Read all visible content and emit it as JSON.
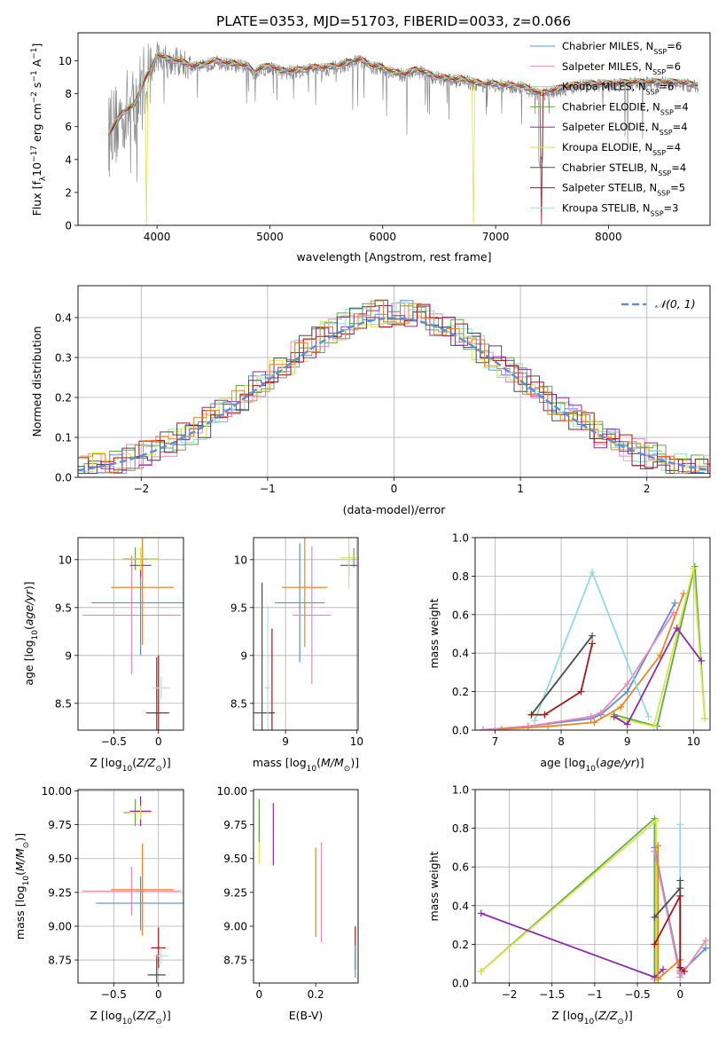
{
  "title": "PLATE=0353, MJD=51703, FIBERID=0033, z=0.066",
  "colors": {
    "Chabrier MILES": "#5b8fd9",
    "Salpeter MILES": "#e889b8",
    "Kroupa MILES": "#8fdbe0",
    "Chabrier ELODIE": "#62a845",
    "Salpeter ELODIE": "#8e2ca8",
    "Kroupa ELODIE": "#d8e64a",
    "Chabrier STELIB": "#4b4b4b",
    "Salpeter STELIB": "#a31616",
    "Kroupa STELIB": "#a7e2ee",
    "data": "#808080",
    "orange": "#f08221",
    "normal": "#5b8fd9"
  },
  "chart_data": [
    {
      "id": "spectrum",
      "type": "line",
      "xlabel": "wavelength [Angstrom, rest frame]",
      "ylabel": "Flux [fλ10⁻¹⁷ erg cm⁻² s⁻¹ A⁻¹]",
      "xlim": [
        3300,
        8900
      ],
      "ylim": [
        0,
        11.7
      ],
      "xticks": [
        4000,
        5000,
        6000,
        7000,
        8000
      ],
      "yticks": [
        0,
        2,
        4,
        6,
        8,
        10
      ],
      "grid": false,
      "legend_placement": "upper right",
      "legend": [
        "Chabrier MILES, N_SSP=6",
        "Salpeter MILES, N_SSP=6",
        "Kroupa MILES, N_SSP=6",
        "Chabrier ELODIE, N_SSP=4",
        "Salpeter ELODIE, N_SSP=4",
        "Kroupa ELODIE, N_SSP=4",
        "Chabrier STELIB, N_SSP=4",
        "Salpeter STELIB, N_SSP=5",
        "Kroupa STELIB, N_SSP=3"
      ],
      "continuum_points": [
        [
          3570,
          5.4
        ],
        [
          3700,
          6.8
        ],
        [
          3800,
          7.2
        ],
        [
          3900,
          8.9
        ],
        [
          3950,
          9.3
        ],
        [
          4000,
          10.3
        ],
        [
          4100,
          10.0
        ],
        [
          4200,
          9.9
        ],
        [
          4300,
          9.6
        ],
        [
          4400,
          9.6
        ],
        [
          4500,
          9.9
        ],
        [
          4600,
          9.8
        ],
        [
          4700,
          9.7
        ],
        [
          4800,
          9.6
        ],
        [
          4860,
          9.2
        ],
        [
          4900,
          9.4
        ],
        [
          5000,
          9.6
        ],
        [
          5100,
          9.3
        ],
        [
          5200,
          9.3
        ],
        [
          5300,
          9.4
        ],
        [
          5400,
          9.5
        ],
        [
          5500,
          9.5
        ],
        [
          5600,
          9.6
        ],
        [
          5700,
          9.8
        ],
        [
          5800,
          10.0
        ],
        [
          5900,
          9.6
        ],
        [
          6000,
          9.5
        ],
        [
          6100,
          9.2
        ],
        [
          6200,
          9.1
        ],
        [
          6300,
          9.4
        ],
        [
          6400,
          9.1
        ],
        [
          6500,
          8.9
        ],
        [
          6600,
          8.8
        ],
        [
          6700,
          8.8
        ],
        [
          6800,
          8.6
        ],
        [
          6900,
          8.5
        ],
        [
          7000,
          8.5
        ],
        [
          7100,
          8.4
        ],
        [
          7200,
          8.4
        ],
        [
          7300,
          8.2
        ],
        [
          7400,
          7.9
        ],
        [
          7600,
          8.3
        ],
        [
          7800,
          8.5
        ],
        [
          8000,
          8.5
        ],
        [
          8200,
          8.6
        ],
        [
          8400,
          8.6
        ],
        [
          8600,
          8.6
        ],
        [
          8800,
          8.4
        ]
      ]
    },
    {
      "id": "residuals",
      "type": "step histogram",
      "xlabel": "(data-model)/error",
      "ylabel": "Normed distribution",
      "xlim": [
        -2.5,
        2.5
      ],
      "ylim": [
        0,
        0.48
      ],
      "xticks": [
        -2,
        -1,
        0,
        1,
        2
      ],
      "yticks": [
        0.0,
        0.1,
        0.2,
        0.3,
        0.4
      ],
      "grid": true,
      "legend_placement": "upper right",
      "legend": [
        "𝒩(0, 1)"
      ],
      "normal_curve": {
        "mu": 0,
        "sigma": 1
      }
    },
    {
      "id": "age-Z",
      "type": "errorbar",
      "xlabel": "Z [log₁₀(Z/Z⊙)]",
      "ylabel": "age  [log₁₀(age/yr)]",
      "xlim": [
        -0.9,
        0.28
      ],
      "ylim": [
        8.22,
        10.23
      ],
      "xticks": [
        -0.5,
        0.0
      ],
      "yticks": [
        8.5,
        9.0,
        9.5,
        10.0
      ],
      "grid": true,
      "points": [
        {
          "model": "Salpeter MILES",
          "x": -0.3,
          "y": 9.42,
          "xerr": 0.55,
          "yerr": 0.62
        },
        {
          "model": "Chabrier MILES",
          "x": -0.2,
          "y": 9.55,
          "xerr": 0.55,
          "yerr": 0.55
        },
        {
          "model": "orange",
          "x": -0.18,
          "y": 9.71,
          "xerr": 0.35,
          "yerr": 0.6
        },
        {
          "model": "Chabrier ELODIE",
          "x": -0.26,
          "y": 10.01,
          "xerr": 0.13,
          "yerr": 0.12
        },
        {
          "model": "Salpeter ELODIE",
          "x": -0.2,
          "y": 9.94,
          "xerr": 0.12,
          "yerr": 0.12
        },
        {
          "model": "Kroupa ELODIE",
          "x": -0.2,
          "y": 10.01,
          "xerr": 0.2,
          "yerr": 0.12
        },
        {
          "model": "Chabrier STELIB",
          "x": -0.02,
          "y": 8.4,
          "xerr": 0.12,
          "yerr": 0.58
        },
        {
          "model": "Salpeter STELIB",
          "x": 0.0,
          "y": 8.4,
          "xerr": 0.12,
          "yerr": 0.6
        },
        {
          "model": "Kroupa STELIB",
          "x": 0.03,
          "y": 8.66,
          "xerr": 0.1,
          "yerr": 0.12
        }
      ]
    },
    {
      "id": "age-mass",
      "type": "errorbar",
      "xlabel": "mass [log₁₀(M/M⊙)]",
      "ylabel": "",
      "xlim": [
        8.55,
        10.02
      ],
      "ylim": [
        8.22,
        10.23
      ],
      "xticks": [
        9,
        10
      ],
      "yticks": [
        8.5,
        9.0,
        9.5,
        10.0
      ],
      "grid": true,
      "points": [
        {
          "model": "Chabrier MILES",
          "x": 9.2,
          "y": 9.55,
          "xerr": 0.35,
          "yerr": 0.62
        },
        {
          "model": "Salpeter MILES",
          "x": 9.37,
          "y": 9.42,
          "xerr": 0.27,
          "yerr": 0.72
        },
        {
          "model": "orange",
          "x": 9.27,
          "y": 9.71,
          "xerr": 0.32,
          "yerr": 0.62
        },
        {
          "model": "Chabrier ELODIE",
          "x": 9.96,
          "y": 10.02,
          "xerr": 0.04,
          "yerr": 0.1
        },
        {
          "model": "Salpeter ELODIE",
          "x": 9.89,
          "y": 9.94,
          "xerr": 0.12,
          "yerr": 0.12
        },
        {
          "model": "Kroupa ELODIE",
          "x": 9.89,
          "y": 10.02,
          "xerr": 0.12,
          "yerr": 0.32
        },
        {
          "model": "Chabrier STELIB",
          "x": 8.67,
          "y": 8.4,
          "xerr": 0.12,
          "yerr": 1.36
        },
        {
          "model": "Salpeter STELIB",
          "x": 8.81,
          "y": 8.4,
          "xerr": 0.04,
          "yerr": 0.88
        },
        {
          "model": "Kroupa STELIB",
          "x": 8.75,
          "y": 8.66,
          "xerr": 0.04,
          "yerr": 0.86
        }
      ]
    },
    {
      "id": "massweight-age",
      "type": "line",
      "xlabel": "age  [log₁₀(age/yr)]",
      "ylabel": "mass weight",
      "xlim": [
        6.7,
        10.25
      ],
      "ylim": [
        0,
        1.0
      ],
      "xticks": [
        7,
        8,
        9,
        10
      ],
      "yticks": [
        0.0,
        0.2,
        0.4,
        0.6,
        0.8,
        1.0
      ],
      "grid": true,
      "series": [
        {
          "model": "Chabrier MILES",
          "x": [
            6.82,
            7.5,
            8.45,
            8.6,
            9.0,
            9.72
          ],
          "y": [
            0.002,
            0.02,
            0.06,
            0.08,
            0.2,
            0.66
          ]
        },
        {
          "model": "Salpeter MILES",
          "x": [
            6.82,
            7.5,
            8.45,
            8.6,
            9.0,
            9.7
          ],
          "y": [
            0.002,
            0.02,
            0.07,
            0.09,
            0.24,
            0.61
          ]
        },
        {
          "model": "orange",
          "x": [
            7.1,
            7.8,
            8.5,
            8.9,
            9.5,
            9.85
          ],
          "y": [
            0.005,
            0.02,
            0.04,
            0.12,
            0.39,
            0.71
          ]
        },
        {
          "model": "Kroupa MILES",
          "x": [
            7.6,
            8.47,
            9.32
          ],
          "y": [
            0.05,
            0.82,
            0.07
          ]
        },
        {
          "model": "Chabrier ELODIE",
          "x": [
            8.8,
            9.45,
            10.02,
            10.17
          ],
          "y": [
            0.08,
            0.02,
            0.85,
            0.06
          ]
        },
        {
          "model": "Kroupa ELODIE",
          "x": [
            8.75,
            9.4,
            10.0,
            10.17
          ],
          "y": [
            0.07,
            0.02,
            0.84,
            0.06
          ]
        },
        {
          "model": "Salpeter ELODIE",
          "x": [
            8.8,
            9.0,
            9.75,
            10.12
          ],
          "y": [
            0.07,
            0.03,
            0.53,
            0.36
          ]
        },
        {
          "model": "Chabrier STELIB",
          "x": [
            7.55,
            8.47
          ],
          "y": [
            0.08,
            0.49
          ]
        },
        {
          "model": "Salpeter STELIB",
          "x": [
            7.55,
            7.75,
            8.3,
            8.47
          ],
          "y": [
            0.08,
            0.08,
            0.2,
            0.45
          ]
        }
      ]
    },
    {
      "id": "mass-Z",
      "type": "errorbar",
      "xlabel": "Z [log₁₀(Z/Z⊙)]",
      "ylabel": "mass [log₁₀(M/M⊙)]",
      "xlim": [
        -0.9,
        0.28
      ],
      "ylim": [
        8.58,
        10.01
      ],
      "xticks": [
        -0.5,
        0.0
      ],
      "yticks": [
        8.75,
        9.0,
        9.25,
        9.5,
        9.75,
        10.0
      ],
      "grid": true,
      "points": [
        {
          "model": "Salpeter MILES",
          "x": -0.3,
          "y": 9.26,
          "xerr": 0.55,
          "yerr": 0.18
        },
        {
          "model": "Chabrier MILES",
          "x": -0.2,
          "y": 9.17,
          "xerr": 0.5,
          "yerr": 0.2
        },
        {
          "model": "orange",
          "x": -0.18,
          "y": 9.27,
          "xerr": 0.35,
          "yerr": 0.34
        },
        {
          "model": "Chabrier ELODIE",
          "x": -0.26,
          "y": 9.84,
          "xerr": 0.13,
          "yerr": 0.1
        },
        {
          "model": "Salpeter ELODIE",
          "x": -0.2,
          "y": 9.85,
          "xerr": 0.12,
          "yerr": 0.11
        },
        {
          "model": "Kroupa ELODIE",
          "x": -0.2,
          "y": 9.84,
          "xerr": 0.12,
          "yerr": 0.05
        },
        {
          "model": "Chabrier STELIB",
          "x": -0.02,
          "y": 8.64,
          "xerr": 0.1,
          "yerr": 0.15
        },
        {
          "model": "Salpeter STELIB",
          "x": 0.0,
          "y": 8.84,
          "xerr": 0.08,
          "yerr": 0.15
        },
        {
          "model": "Kroupa STELIB",
          "x": 0.03,
          "y": 8.78,
          "xerr": 0.08,
          "yerr": 0.06
        }
      ]
    },
    {
      "id": "mass-EBV",
      "type": "errorbar",
      "xlabel": "E(B-V)",
      "ylabel": "",
      "xlim": [
        -0.02,
        0.35
      ],
      "ylim": [
        8.58,
        10.01
      ],
      "xticks": [
        0.0,
        0.2
      ],
      "yticks": [
        8.75,
        9.0,
        9.25,
        9.5,
        9.75,
        10.0
      ],
      "grid": false,
      "points": [
        {
          "model": "Kroupa ELODIE",
          "x": 0.0,
          "y": 9.7,
          "xerr": 0,
          "yerr": 0.24
        },
        {
          "model": "Chabrier ELODIE",
          "x": 0.0,
          "y": 9.78,
          "xerr": 0,
          "yerr": 0.16
        },
        {
          "model": "Salpeter ELODIE",
          "x": 0.05,
          "y": 9.68,
          "xerr": 0,
          "yerr": 0.23
        },
        {
          "model": "orange",
          "x": 0.2,
          "y": 9.25,
          "xerr": 0,
          "yerr": 0.33
        },
        {
          "model": "Salpeter MILES",
          "x": 0.22,
          "y": 9.25,
          "xerr": 0,
          "yerr": 0.37
        },
        {
          "model": "Salpeter STELIB",
          "x": 0.34,
          "y": 8.84,
          "xerr": 0,
          "yerr": 0.16
        },
        {
          "model": "Chabrier MILES",
          "x": 0.34,
          "y": 8.74,
          "xerr": 0,
          "yerr": 0.12
        }
      ]
    },
    {
      "id": "massweight-Z",
      "type": "line",
      "xlabel": "Z [log₁₀(Z/Z⊙)]",
      "ylabel": "mass weight",
      "xlim": [
        -2.4,
        0.35
      ],
      "ylim": [
        0,
        1.0
      ],
      "xticks": [
        -2.0,
        -1.5,
        -1.0,
        -0.5,
        0.0
      ],
      "yticks": [
        0.0,
        0.2,
        0.4,
        0.6,
        0.8,
        1.0
      ],
      "grid": true,
      "series": [
        {
          "model": "Chabrier ELODIE",
          "x": [
            -2.33,
            -0.3,
            -0.3
          ],
          "y": [
            0.06,
            0.85,
            0.02
          ]
        },
        {
          "model": "Kroupa ELODIE",
          "x": [
            -2.33,
            -0.28,
            -0.28
          ],
          "y": [
            0.06,
            0.84,
            0.02
          ]
        },
        {
          "model": "Salpeter ELODIE",
          "x": [
            -2.33,
            -0.3,
            -0.2
          ],
          "y": [
            0.36,
            0.03,
            0.07
          ]
        },
        {
          "model": "Chabrier MILES",
          "x": [
            -0.3,
            0.0,
            0.3
          ],
          "y": [
            0.7,
            0.05,
            0.18
          ]
        },
        {
          "model": "Salpeter MILES",
          "x": [
            -0.3,
            0.0,
            0.3
          ],
          "y": [
            0.68,
            0.03,
            0.22
          ]
        },
        {
          "model": "orange",
          "x": [
            -0.26,
            -0.26,
            0.0,
            0.0
          ],
          "y": [
            0.71,
            0.02,
            0.12,
            0.06
          ]
        },
        {
          "model": "Kroupa MILES",
          "x": [
            0.0,
            0.0
          ],
          "y": [
            0.82,
            0.07
          ]
        },
        {
          "model": "Chabrier STELIB",
          "x": [
            -0.3,
            0.0,
            0.0,
            0.0
          ],
          "y": [
            0.34,
            0.49,
            0.53,
            0.08
          ]
        },
        {
          "model": "Salpeter STELIB",
          "x": [
            -0.3,
            0.0,
            0.0,
            0.05
          ],
          "y": [
            0.2,
            0.45,
            0.08,
            0.06
          ]
        }
      ]
    }
  ]
}
